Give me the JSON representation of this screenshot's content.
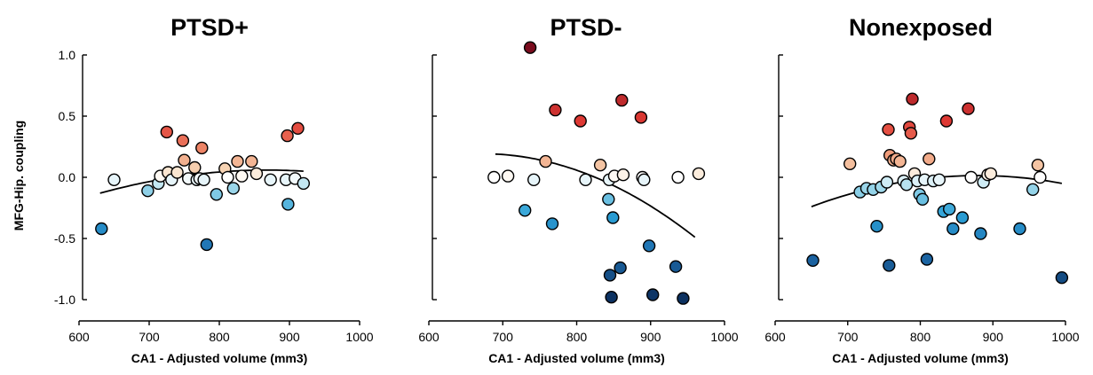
{
  "figure": {
    "y_axis_label": "MFG-Hip. coupling",
    "color_scale": {
      "stops": [
        {
          "v": -1.0,
          "c": "#0b2f5e"
        },
        {
          "v": -0.6,
          "c": "#1f6fb0"
        },
        {
          "v": -0.3,
          "c": "#2aa0d6"
        },
        {
          "v": -0.08,
          "c": "#9fd8ea"
        },
        {
          "v": 0.0,
          "c": "#ffffff"
        },
        {
          "v": 0.06,
          "c": "#f6d8b8"
        },
        {
          "v": 0.2,
          "c": "#ef9270"
        },
        {
          "v": 0.45,
          "c": "#e03a34"
        },
        {
          "v": 1.0,
          "c": "#7a0c1e"
        }
      ]
    }
  },
  "chart_data": [
    {
      "type": "scatter",
      "title": "PTSD+",
      "xlabel": "CA1 - Adjusted volume (mm3)",
      "ylabel": "MFG-Hip. coupling",
      "xlim": [
        600,
        1000
      ],
      "ylim": [
        -1.0,
        1.0
      ],
      "xticks": [
        600,
        700,
        800,
        900,
        1000
      ],
      "yticks": [
        1.0,
        0.5,
        0.0,
        -0.5,
        -1.0
      ],
      "ytick_labels": [
        "1.0",
        "0.5",
        "0.0",
        "-0.5",
        "-1.0"
      ],
      "show_y_tick_labels": true,
      "grid": false,
      "fit": {
        "type": "quadratic",
        "x_range": [
          630,
          920
        ],
        "curve": [
          [
            630,
            -0.13
          ],
          [
            775,
            0.03
          ],
          [
            920,
            0.05
          ]
        ]
      },
      "points": [
        {
          "x": 632,
          "y": -0.42
        },
        {
          "x": 650,
          "y": -0.02
        },
        {
          "x": 698,
          "y": -0.11
        },
        {
          "x": 713,
          "y": -0.05
        },
        {
          "x": 716,
          "y": 0.01
        },
        {
          "x": 725,
          "y": 0.37
        },
        {
          "x": 727,
          "y": 0.04
        },
        {
          "x": 732,
          "y": -0.02
        },
        {
          "x": 740,
          "y": 0.04
        },
        {
          "x": 748,
          "y": 0.3
        },
        {
          "x": 750,
          "y": 0.14
        },
        {
          "x": 756,
          "y": -0.01
        },
        {
          "x": 765,
          "y": 0.08
        },
        {
          "x": 768,
          "y": -0.02
        },
        {
          "x": 772,
          "y": -0.01
        },
        {
          "x": 775,
          "y": 0.24
        },
        {
          "x": 778,
          "y": -0.02
        },
        {
          "x": 782,
          "y": -0.55
        },
        {
          "x": 796,
          "y": -0.14
        },
        {
          "x": 808,
          "y": 0.07
        },
        {
          "x": 812,
          "y": 0.0
        },
        {
          "x": 820,
          "y": -0.09
        },
        {
          "x": 826,
          "y": 0.13
        },
        {
          "x": 832,
          "y": 0.01
        },
        {
          "x": 846,
          "y": 0.13
        },
        {
          "x": 853,
          "y": 0.03
        },
        {
          "x": 873,
          "y": -0.02
        },
        {
          "x": 895,
          "y": -0.02
        },
        {
          "x": 898,
          "y": -0.22
        },
        {
          "x": 897,
          "y": 0.34
        },
        {
          "x": 908,
          "y": -0.01
        },
        {
          "x": 912,
          "y": 0.4
        },
        {
          "x": 920,
          "y": -0.05
        }
      ]
    },
    {
      "type": "scatter",
      "title": "PTSD-",
      "xlabel": "CA1 - Adjusted volume (mm3)",
      "ylabel": "",
      "xlim": [
        600,
        1000
      ],
      "ylim": [
        -1.0,
        1.0
      ],
      "xticks": [
        600,
        700,
        800,
        900,
        1000
      ],
      "yticks": [
        1.0,
        0.5,
        0.0,
        -0.5,
        -1.0
      ],
      "ytick_labels": [
        "1.0",
        "0.5",
        "0.0",
        "-0.5",
        "-1.0"
      ],
      "show_y_tick_labels": false,
      "grid": false,
      "fit": {
        "type": "quadratic",
        "x_range": [
          690,
          960
        ],
        "curve": [
          [
            690,
            0.19
          ],
          [
            825,
            0.0
          ],
          [
            960,
            -0.49
          ]
        ]
      },
      "points": [
        {
          "x": 688,
          "y": 0.0
        },
        {
          "x": 707,
          "y": 0.01
        },
        {
          "x": 730,
          "y": -0.27
        },
        {
          "x": 737,
          "y": 1.06
        },
        {
          "x": 742,
          "y": -0.02
        },
        {
          "x": 758,
          "y": 0.13
        },
        {
          "x": 767,
          "y": -0.38
        },
        {
          "x": 771,
          "y": 0.55
        },
        {
          "x": 805,
          "y": 0.46
        },
        {
          "x": 812,
          "y": -0.02
        },
        {
          "x": 832,
          "y": 0.1
        },
        {
          "x": 843,
          "y": -0.18
        },
        {
          "x": 844,
          "y": -0.02
        },
        {
          "x": 845,
          "y": -0.8
        },
        {
          "x": 847,
          "y": -0.98
        },
        {
          "x": 849,
          "y": -0.33
        },
        {
          "x": 851,
          "y": 0.01
        },
        {
          "x": 859,
          "y": -0.74
        },
        {
          "x": 861,
          "y": 0.63
        },
        {
          "x": 863,
          "y": 0.02
        },
        {
          "x": 887,
          "y": 0.49
        },
        {
          "x": 889,
          "y": 0.0
        },
        {
          "x": 891,
          "y": -0.02
        },
        {
          "x": 898,
          "y": -0.56
        },
        {
          "x": 903,
          "y": -0.96
        },
        {
          "x": 937,
          "y": 0.0
        },
        {
          "x": 934,
          "y": -0.73
        },
        {
          "x": 944,
          "y": -0.99
        },
        {
          "x": 965,
          "y": 0.03
        }
      ]
    },
    {
      "type": "scatter",
      "title": "Nonexposed",
      "xlabel": "CA1 - Adjusted volume (mm3)",
      "ylabel": "",
      "xlim": [
        600,
        1000
      ],
      "ylim": [
        -1.0,
        1.0
      ],
      "xticks": [
        600,
        700,
        800,
        900,
        1000
      ],
      "yticks": [
        1.0,
        0.5,
        0.0,
        -0.5,
        -1.0
      ],
      "ytick_labels": [
        "1.0",
        "0.5",
        "0.0",
        "-0.5",
        "-1.0"
      ],
      "show_y_tick_labels": false,
      "grid": false,
      "fit": {
        "type": "quadratic",
        "x_range": [
          650,
          995
        ],
        "curve": [
          [
            650,
            -0.24
          ],
          [
            825,
            0.0
          ],
          [
            995,
            -0.05
          ]
        ]
      },
      "points": [
        {
          "x": 652,
          "y": -0.68
        },
        {
          "x": 703,
          "y": 0.11
        },
        {
          "x": 717,
          "y": -0.12
        },
        {
          "x": 726,
          "y": -0.09
        },
        {
          "x": 735,
          "y": -0.1
        },
        {
          "x": 740,
          "y": -0.4
        },
        {
          "x": 746,
          "y": -0.08
        },
        {
          "x": 754,
          "y": -0.04
        },
        {
          "x": 756,
          "y": 0.39
        },
        {
          "x": 757,
          "y": -0.72
        },
        {
          "x": 758,
          "y": 0.18
        },
        {
          "x": 763,
          "y": 0.14
        },
        {
          "x": 767,
          "y": 0.15
        },
        {
          "x": 772,
          "y": 0.13
        },
        {
          "x": 777,
          "y": -0.03
        },
        {
          "x": 781,
          "y": -0.06
        },
        {
          "x": 785,
          "y": 0.41
        },
        {
          "x": 787,
          "y": 0.36
        },
        {
          "x": 789,
          "y": 0.64
        },
        {
          "x": 792,
          "y": 0.03
        },
        {
          "x": 796,
          "y": -0.03
        },
        {
          "x": 799,
          "y": -0.14
        },
        {
          "x": 803,
          "y": -0.18
        },
        {
          "x": 806,
          "y": -0.02
        },
        {
          "x": 809,
          "y": -0.67
        },
        {
          "x": 812,
          "y": 0.15
        },
        {
          "x": 818,
          "y": -0.03
        },
        {
          "x": 826,
          "y": -0.02
        },
        {
          "x": 832,
          "y": -0.28
        },
        {
          "x": 836,
          "y": 0.46
        },
        {
          "x": 840,
          "y": -0.26
        },
        {
          "x": 845,
          "y": -0.42
        },
        {
          "x": 858,
          "y": -0.33
        },
        {
          "x": 866,
          "y": 0.56
        },
        {
          "x": 870,
          "y": 0.0
        },
        {
          "x": 883,
          "y": -0.46
        },
        {
          "x": 887,
          "y": -0.04
        },
        {
          "x": 893,
          "y": 0.02
        },
        {
          "x": 897,
          "y": 0.03
        },
        {
          "x": 937,
          "y": -0.42
        },
        {
          "x": 955,
          "y": -0.1
        },
        {
          "x": 962,
          "y": 0.1
        },
        {
          "x": 965,
          "y": 0.0
        },
        {
          "x": 995,
          "y": -0.82
        }
      ]
    }
  ]
}
